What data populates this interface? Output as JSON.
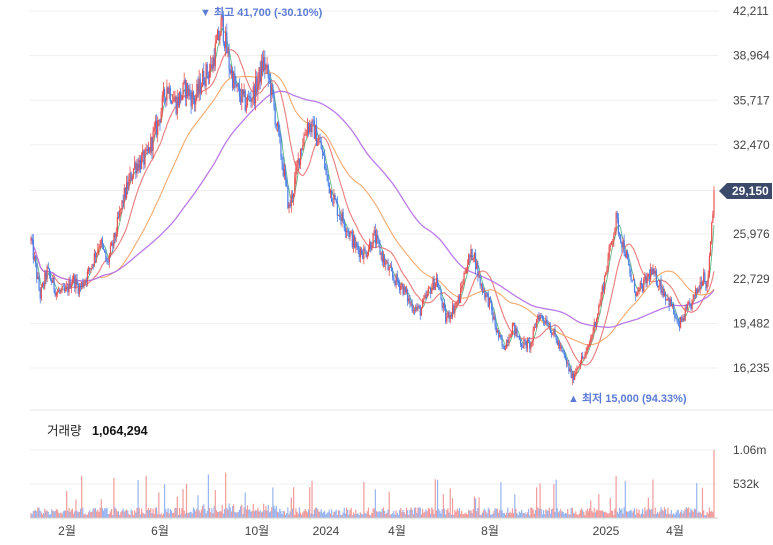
{
  "chart_data": [
    {
      "type": "candlestick",
      "y_ticks": [
        "42,211",
        "38,964",
        "35,717",
        "32,470",
        "29,150",
        "25,976",
        "22,729",
        "19,482",
        "16,235"
      ],
      "ylim": [
        13700,
        42700
      ],
      "x_ticks": [
        "2월",
        "6월",
        "10월",
        "2024",
        "4월",
        "8월",
        "2025",
        "4월"
      ],
      "current_price": "29,150",
      "high_annotation": "▼ 최고 41,700 (-30.10%)",
      "low_annotation": "▲ 최저 15,000 (94.33%)",
      "price_anchors": [
        {
          "i": 0,
          "v": 25500
        },
        {
          "i": 8,
          "v": 21500
        },
        {
          "i": 14,
          "v": 23300
        },
        {
          "i": 22,
          "v": 21800
        },
        {
          "i": 30,
          "v": 21700
        },
        {
          "i": 36,
          "v": 22800
        },
        {
          "i": 42,
          "v": 22000
        },
        {
          "i": 50,
          "v": 23200
        },
        {
          "i": 60,
          "v": 25500
        },
        {
          "i": 66,
          "v": 23800
        },
        {
          "i": 72,
          "v": 25500
        },
        {
          "i": 80,
          "v": 28500
        },
        {
          "i": 90,
          "v": 31000
        },
        {
          "i": 100,
          "v": 31500
        },
        {
          "i": 110,
          "v": 34000
        },
        {
          "i": 118,
          "v": 36800
        },
        {
          "i": 126,
          "v": 35500
        },
        {
          "i": 134,
          "v": 36600
        },
        {
          "i": 142,
          "v": 35700
        },
        {
          "i": 150,
          "v": 37500
        },
        {
          "i": 156,
          "v": 38000
        },
        {
          "i": 162,
          "v": 40000
        },
        {
          "i": 166,
          "v": 41300
        },
        {
          "i": 172,
          "v": 38300
        },
        {
          "i": 178,
          "v": 36500
        },
        {
          "i": 186,
          "v": 35500
        },
        {
          "i": 194,
          "v": 36300
        },
        {
          "i": 202,
          "v": 38500
        },
        {
          "i": 208,
          "v": 36700
        },
        {
          "i": 214,
          "v": 33500
        },
        {
          "i": 220,
          "v": 30200
        },
        {
          "i": 224,
          "v": 27800
        },
        {
          "i": 228,
          "v": 29300
        },
        {
          "i": 234,
          "v": 32200
        },
        {
          "i": 240,
          "v": 34000
        },
        {
          "i": 246,
          "v": 33500
        },
        {
          "i": 252,
          "v": 32200
        },
        {
          "i": 258,
          "v": 29700
        },
        {
          "i": 266,
          "v": 27800
        },
        {
          "i": 274,
          "v": 26500
        },
        {
          "i": 282,
          "v": 25000
        },
        {
          "i": 290,
          "v": 24600
        },
        {
          "i": 298,
          "v": 25800
        },
        {
          "i": 306,
          "v": 24100
        },
        {
          "i": 314,
          "v": 22800
        },
        {
          "i": 322,
          "v": 22200
        },
        {
          "i": 330,
          "v": 20800
        },
        {
          "i": 338,
          "v": 20400
        },
        {
          "i": 346,
          "v": 21900
        },
        {
          "i": 352,
          "v": 22700
        },
        {
          "i": 360,
          "v": 19800
        },
        {
          "i": 366,
          "v": 20500
        },
        {
          "i": 372,
          "v": 21300
        },
        {
          "i": 378,
          "v": 23800
        },
        {
          "i": 384,
          "v": 24700
        },
        {
          "i": 390,
          "v": 22400
        },
        {
          "i": 398,
          "v": 21000
        },
        {
          "i": 404,
          "v": 19000
        },
        {
          "i": 410,
          "v": 17600
        },
        {
          "i": 418,
          "v": 19300
        },
        {
          "i": 426,
          "v": 18000
        },
        {
          "i": 434,
          "v": 17900
        },
        {
          "i": 440,
          "v": 20100
        },
        {
          "i": 448,
          "v": 19700
        },
        {
          "i": 456,
          "v": 18300
        },
        {
          "i": 464,
          "v": 16800
        },
        {
          "i": 470,
          "v": 15500
        },
        {
          "i": 476,
          "v": 16700
        },
        {
          "i": 482,
          "v": 17200
        },
        {
          "i": 488,
          "v": 19000
        },
        {
          "i": 494,
          "v": 21000
        },
        {
          "i": 500,
          "v": 23700
        },
        {
          "i": 504,
          "v": 25500
        },
        {
          "i": 508,
          "v": 27000
        },
        {
          "i": 512,
          "v": 25800
        },
        {
          "i": 516,
          "v": 24700
        },
        {
          "i": 520,
          "v": 23000
        },
        {
          "i": 526,
          "v": 21600
        },
        {
          "i": 532,
          "v": 22300
        },
        {
          "i": 538,
          "v": 23200
        },
        {
          "i": 544,
          "v": 22600
        },
        {
          "i": 550,
          "v": 21700
        },
        {
          "i": 556,
          "v": 20800
        },
        {
          "i": 562,
          "v": 19200
        },
        {
          "i": 568,
          "v": 20200
        },
        {
          "i": 574,
          "v": 21000
        },
        {
          "i": 580,
          "v": 22200
        },
        {
          "i": 584,
          "v": 23200
        },
        {
          "i": 587,
          "v": 22100
        },
        {
          "i": 590,
          "v": 25600
        },
        {
          "i": 593,
          "v": 29150
        }
      ],
      "volume_label": "거래량",
      "volume_value": "1,064,294",
      "volume_ticks": [
        "1.06m",
        "532k"
      ],
      "volume_max": 1064294
    }
  ]
}
